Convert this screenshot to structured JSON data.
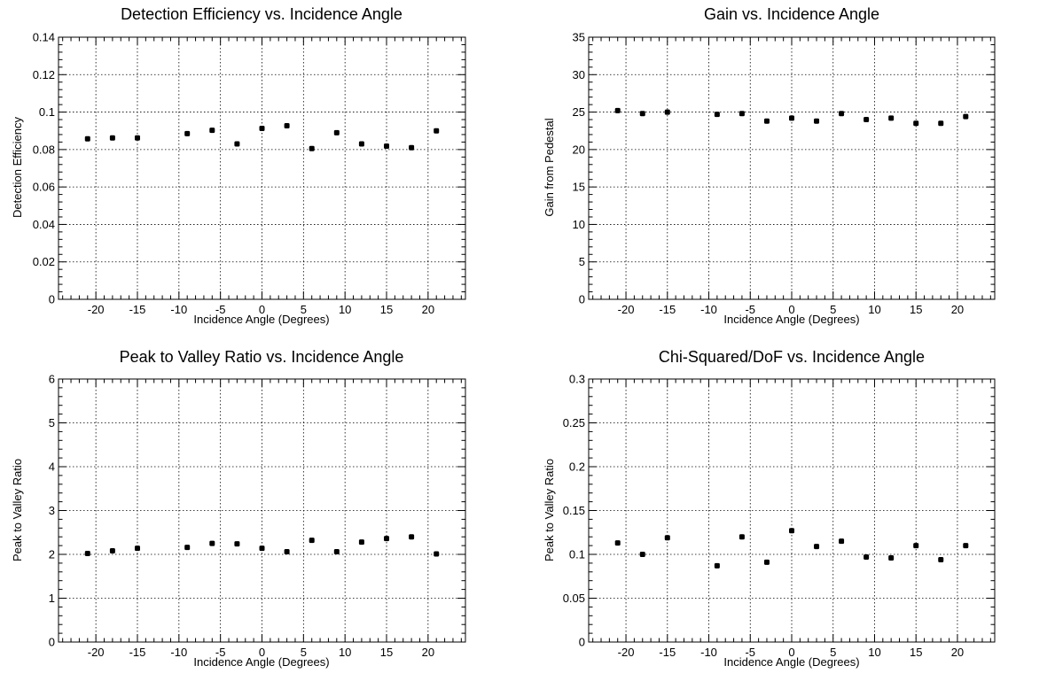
{
  "chart_data": [
    {
      "type": "scatter",
      "title": "Detection Efficiency vs. Incidence Angle",
      "xlabel": "Incidence Angle (Degrees)",
      "ylabel": "Detection Efficiency",
      "xlim": [
        -24.5,
        24.5
      ],
      "ylim": [
        0,
        0.14
      ],
      "xticks": [
        -20,
        -15,
        -10,
        -5,
        0,
        5,
        10,
        15,
        20
      ],
      "xtick_labels": [
        "-20",
        "-15",
        "-10",
        "-5",
        "0",
        "5",
        "10",
        "15",
        "20"
      ],
      "yticks": [
        0,
        0.02,
        0.04,
        0.06,
        0.08,
        0.1,
        0.12,
        0.14
      ],
      "ytick_labels": [
        "0",
        "0.02",
        "0.04",
        "0.06",
        "0.08",
        "0.1",
        "0.12",
        "0.14"
      ],
      "grid": true,
      "x": [
        -21,
        -18,
        -15,
        -9,
        -6,
        -3,
        0,
        3,
        6,
        9,
        12,
        15,
        18,
        21
      ],
      "y": [
        0.0857,
        0.0862,
        0.0862,
        0.0885,
        0.0903,
        0.083,
        0.0913,
        0.0927,
        0.0805,
        0.089,
        0.083,
        0.0818,
        0.081,
        0.09
      ]
    },
    {
      "type": "scatter",
      "title": "Gain vs. Incidence Angle",
      "xlabel": "Incidence Angle (Degrees)",
      "ylabel": "Gain from Pedestal",
      "xlim": [
        -24.5,
        24.5
      ],
      "ylim": [
        0,
        35
      ],
      "xticks": [
        -20,
        -15,
        -10,
        -5,
        0,
        5,
        10,
        15,
        20
      ],
      "xtick_labels": [
        "-20",
        "-15",
        "-10",
        "-5",
        "0",
        "5",
        "10",
        "15",
        "20"
      ],
      "yticks": [
        0,
        5,
        10,
        15,
        20,
        25,
        30,
        35
      ],
      "ytick_labels": [
        "0",
        "5",
        "10",
        "15",
        "20",
        "25",
        "30",
        "35"
      ],
      "grid": true,
      "x": [
        -21,
        -18,
        -15,
        -9,
        -6,
        -3,
        0,
        3,
        6,
        9,
        12,
        15,
        18,
        21
      ],
      "y": [
        25.2,
        24.8,
        25.0,
        24.7,
        24.8,
        23.8,
        24.2,
        23.8,
        24.8,
        24.0,
        24.2,
        23.5,
        23.5,
        24.4
      ]
    },
    {
      "type": "scatter",
      "title": "Peak to Valley Ratio vs. Incidence Angle",
      "xlabel": "Incidence Angle (Degrees)",
      "ylabel": "Peak to Valley Ratio",
      "xlim": [
        -24.5,
        24.5
      ],
      "ylim": [
        0,
        6
      ],
      "xticks": [
        -20,
        -15,
        -10,
        -5,
        0,
        5,
        10,
        15,
        20
      ],
      "xtick_labels": [
        "-20",
        "-15",
        "-10",
        "-5",
        "0",
        "5",
        "10",
        "15",
        "20"
      ],
      "yticks": [
        0,
        1,
        2,
        3,
        4,
        5,
        6
      ],
      "ytick_labels": [
        "0",
        "1",
        "2",
        "3",
        "4",
        "5",
        "6"
      ],
      "grid": true,
      "x": [
        -21,
        -18,
        -15,
        -9,
        -6,
        -3,
        0,
        3,
        6,
        9,
        12,
        15,
        18,
        21
      ],
      "y": [
        2.02,
        2.08,
        2.14,
        2.16,
        2.25,
        2.24,
        2.14,
        2.06,
        2.32,
        2.06,
        2.28,
        2.36,
        2.4,
        2.01
      ]
    },
    {
      "type": "scatter",
      "title": "Chi-Squared/DoF vs. Incidence Angle",
      "xlabel": "Incidence Angle (Degrees)",
      "ylabel": "Peak to Valley Ratio",
      "xlim": [
        -24.5,
        24.5
      ],
      "ylim": [
        0,
        0.3
      ],
      "xticks": [
        -20,
        -15,
        -10,
        -5,
        0,
        5,
        10,
        15,
        20
      ],
      "xtick_labels": [
        "-20",
        "-15",
        "-10",
        "-5",
        "0",
        "5",
        "10",
        "15",
        "20"
      ],
      "yticks": [
        0,
        0.05,
        0.1,
        0.15,
        0.2,
        0.25,
        0.3
      ],
      "ytick_labels": [
        "0",
        "0.05",
        "0.1",
        "0.15",
        "0.2",
        "0.25",
        "0.3"
      ],
      "grid": true,
      "x": [
        -21,
        -18,
        -15,
        -9,
        -6,
        -3,
        0,
        3,
        6,
        9,
        12,
        15,
        18,
        21
      ],
      "y": [
        0.113,
        0.1,
        0.119,
        0.087,
        0.12,
        0.091,
        0.127,
        0.109,
        0.115,
        0.097,
        0.096,
        0.11,
        0.094,
        0.11
      ]
    }
  ]
}
